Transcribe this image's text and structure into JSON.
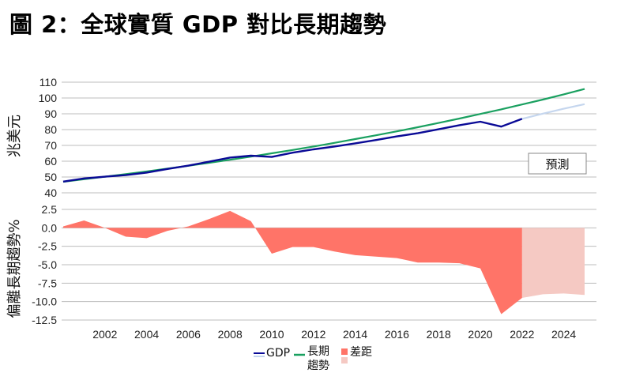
{
  "title": "圖 2：全球實質 GDP 對比長期趨勢",
  "forecast_label": "預測",
  "legend": {
    "gdp": "GDP",
    "trend_line1": "長期",
    "trend_line2": "趨勢",
    "gap": "差距"
  },
  "colors": {
    "gdp": "#0a0a96",
    "gdp_forecast": "#c5d6ee",
    "trend": "#1aa060",
    "gap": "#ff7468",
    "gap_forecast": "#f5c9c3",
    "grid": "#bdbdbd"
  },
  "chart_data": [
    {
      "type": "line",
      "title": "全球實質 GDP 對比長期趨勢",
      "ylabel": "兆美元",
      "ylim": [
        40,
        110
      ],
      "yticks": [
        40,
        50,
        60,
        70,
        80,
        90,
        100,
        110
      ],
      "x": [
        2000,
        2001,
        2002,
        2003,
        2004,
        2005,
        2006,
        2007,
        2008,
        2009,
        2010,
        2011,
        2012,
        2013,
        2014,
        2015,
        2016,
        2017,
        2018,
        2019,
        2020,
        2021,
        2022,
        2023,
        2024,
        2025
      ],
      "forecast_start": 2022,
      "annotation": "預測",
      "grid": true,
      "legend_position": "bottom",
      "series": [
        {
          "name": "GDP",
          "values": [
            47.1,
            49.1,
            50.2,
            51.2,
            52.8,
            55.1,
            57.2,
            59.7,
            62.3,
            63.5,
            62.7,
            65.4,
            67.5,
            69.3,
            71.3,
            73.4,
            75.7,
            77.7,
            80.2,
            82.8,
            85.0,
            81.9,
            86.8,
            90.1,
            93.2,
            96.1
          ]
        },
        {
          "name": "長期趨勢",
          "values": [
            47.0,
            48.6,
            50.2,
            51.8,
            53.5,
            55.3,
            57.1,
            59.0,
            60.9,
            62.9,
            65.0,
            67.1,
            69.3,
            71.6,
            74.0,
            76.4,
            78.9,
            81.5,
            84.2,
            87.0,
            89.9,
            92.8,
            95.9,
            99.0,
            102.3,
            105.7
          ]
        }
      ]
    },
    {
      "type": "area",
      "ylabel": "偏離長期趨勢%",
      "ylim": [
        -12.5,
        2.5
      ],
      "yticks": [
        "2.5",
        "0.0",
        "-2.5",
        "-5.0",
        "-7.5",
        "-10.0",
        "-12.5"
      ],
      "ytick_values": [
        2.5,
        0,
        -2.5,
        -5,
        -7.5,
        -10,
        -12.5
      ],
      "x": [
        2000,
        2001,
        2002,
        2003,
        2004,
        2005,
        2006,
        2007,
        2008,
        2009,
        2010,
        2011,
        2012,
        2013,
        2014,
        2015,
        2016,
        2017,
        2018,
        2019,
        2020,
        2021,
        2022,
        2023,
        2024,
        2025
      ],
      "xticks": [
        "2002",
        "2004",
        "2006",
        "2008",
        "2010",
        "2012",
        "2014",
        "2016",
        "2018",
        "2020",
        "2022",
        "2024"
      ],
      "xtick_values": [
        2002,
        2004,
        2006,
        2008,
        2010,
        2012,
        2014,
        2016,
        2018,
        2020,
        2022,
        2024
      ],
      "forecast_start": 2022,
      "grid": true,
      "series": [
        {
          "name": "差距",
          "values": [
            0.2,
            1.0,
            0.0,
            -1.2,
            -1.4,
            -0.4,
            0.2,
            1.2,
            2.3,
            0.9,
            -3.5,
            -2.6,
            -2.6,
            -3.2,
            -3.7,
            -3.9,
            -4.1,
            -4.7,
            -4.7,
            -4.8,
            -5.5,
            -11.7,
            -9.5,
            -9.0,
            -8.9,
            -9.1
          ]
        }
      ]
    }
  ]
}
